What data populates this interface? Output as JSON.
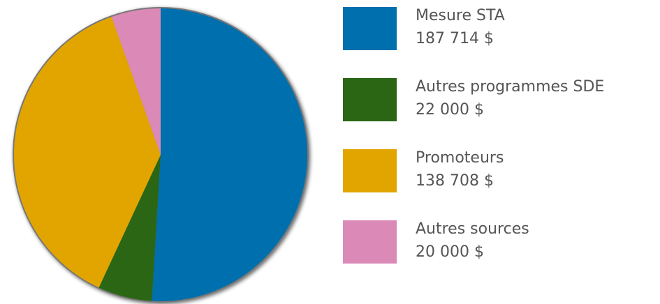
{
  "chart_data": {
    "type": "pie",
    "categories": [
      "Mesure STA",
      "Autres programmes SDE",
      "Promoteurs",
      "Autres sources"
    ],
    "values": [
      187714,
      22000,
      138708,
      20000
    ],
    "value_labels": [
      "187 714 $",
      "22 000 $",
      "138 708 $",
      "20 000 $"
    ],
    "colors": [
      "#006fae",
      "#2a6614",
      "#e2a500",
      "#db8ab8"
    ],
    "legend": "right"
  }
}
